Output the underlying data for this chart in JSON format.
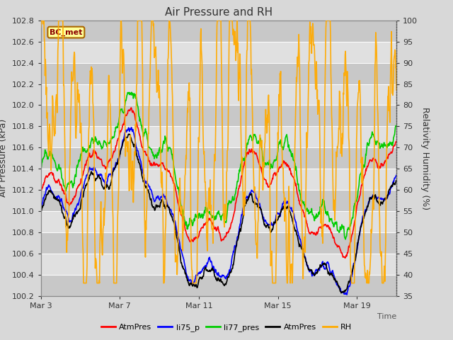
{
  "title": "Air Pressure and RH",
  "xlabel": "Time",
  "ylabel_left": "Air Pressure (kPa)",
  "ylabel_right": "Relativity Humidity (%)",
  "ylim_left": [
    100.2,
    102.8
  ],
  "ylim_right": [
    35,
    100
  ],
  "yticks_left": [
    100.2,
    100.4,
    100.6,
    100.8,
    101.0,
    101.2,
    101.4,
    101.6,
    101.8,
    102.0,
    102.2,
    102.4,
    102.6,
    102.8
  ],
  "yticks_right": [
    35,
    40,
    45,
    50,
    55,
    60,
    65,
    70,
    75,
    80,
    85,
    90,
    95,
    100
  ],
  "xtick_labels": [
    "Mar 3",
    "Mar 7",
    "Mar 11",
    "Mar 15",
    "Mar 19"
  ],
  "xtick_positions": [
    0,
    4,
    8,
    12,
    16
  ],
  "xlim": [
    0,
    18
  ],
  "colors": {
    "red": "#ff0000",
    "blue": "#0000ff",
    "green": "#00cc00",
    "black": "#000000",
    "orange": "#ffaa00"
  },
  "legend": [
    "AtmPres",
    "li75_p",
    "li77_pres",
    "AtmPres",
    "RH"
  ],
  "label_box": "BC_met",
  "title_fontsize": 11,
  "tick_fontsize": 8,
  "ylabel_fontsize": 9,
  "legend_fontsize": 8
}
